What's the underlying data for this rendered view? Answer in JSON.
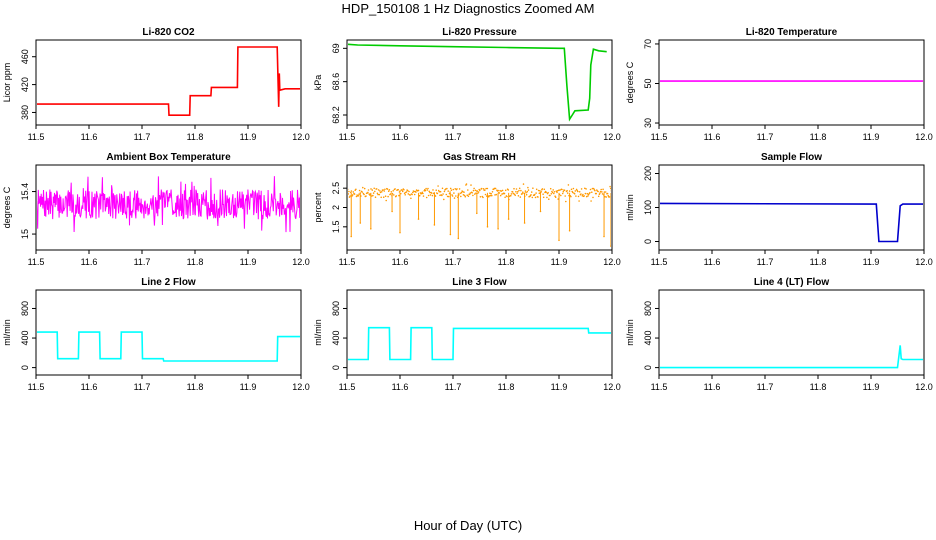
{
  "figure": {
    "title": "HDP_150108  1 Hz Diagnostics Zoomed AM",
    "xlabel": "Hour of Day (UTC)"
  },
  "chart_data": [
    {
      "type": "line",
      "title": "Li-820 CO2",
      "ylabel": "Licor ppm",
      "color": "#ff0000",
      "xlim": [
        11.5,
        12.0
      ],
      "ylim": [
        362,
        484
      ],
      "xticks": [
        11.5,
        11.6,
        11.7,
        11.8,
        11.9,
        12.0
      ],
      "yticks": [
        380,
        420,
        460
      ],
      "series": [
        {
          "x": [
            11.5,
            11.71,
            11.75,
            11.751,
            11.79,
            11.791,
            11.83,
            11.831,
            11.88,
            11.881,
            11.955,
            11.958,
            11.959,
            11.96,
            11.97,
            12.0
          ],
          "y": [
            392,
            392,
            392,
            376,
            376,
            404,
            404,
            416,
            416,
            474,
            474,
            388,
            436,
            412,
            414,
            414
          ]
        }
      ]
    },
    {
      "type": "line",
      "title": "Li-820 Pressure",
      "ylabel": "kPa",
      "color": "#00cc00",
      "xlim": [
        11.5,
        12.0
      ],
      "ylim": [
        68.08,
        69.1
      ],
      "xticks": [
        11.5,
        11.6,
        11.7,
        11.8,
        11.9,
        12.0
      ],
      "yticks": [
        68.2,
        68.6,
        69.0
      ],
      "series": [
        {
          "x": [
            11.5,
            11.52,
            11.6,
            11.7,
            11.8,
            11.9,
            11.91,
            11.915,
            11.92,
            11.925,
            11.93,
            11.955,
            11.958,
            11.96,
            11.965,
            11.975,
            11.99
          ],
          "y": [
            69.05,
            69.04,
            69.03,
            69.02,
            69.01,
            69.0,
            69.0,
            68.55,
            68.15,
            68.2,
            68.25,
            68.26,
            68.4,
            68.8,
            68.99,
            68.97,
            68.96
          ]
        }
      ]
    },
    {
      "type": "line",
      "title": "Li-820 Temperature",
      "ylabel": "degrees C",
      "color": "#ff00ff",
      "xlim": [
        11.5,
        12.0
      ],
      "ylim": [
        29,
        72
      ],
      "xticks": [
        11.5,
        11.6,
        11.7,
        11.8,
        11.9,
        12.0
      ],
      "yticks": [
        30,
        50,
        70
      ],
      "series": [
        {
          "x": [
            11.5,
            12.0
          ],
          "y": [
            51.2,
            51.2
          ]
        }
      ]
    },
    {
      "type": "line",
      "title": "Ambient Box Temperature",
      "ylabel": "degrees C",
      "color": "#ff00ff",
      "xlim": [
        11.5,
        12.0
      ],
      "ylim": [
        14.85,
        15.65
      ],
      "xticks": [
        11.5,
        11.6,
        11.7,
        11.8,
        11.9,
        12.0
      ],
      "yticks": [
        15.0,
        15.4
      ],
      "series": [
        {
          "pattern": "noise",
          "x_range": [
            11.5,
            12.0
          ],
          "base": 15.28,
          "amplitude": 0.14,
          "n": 460,
          "seed": 7
        }
      ]
    },
    {
      "type": "scatter",
      "title": "Gas Stream RH",
      "ylabel": "percent",
      "color": "#ff9900",
      "xlim": [
        11.5,
        12.0
      ],
      "ylim": [
        0.9,
        3.1
      ],
      "xticks": [
        11.5,
        11.6,
        11.7,
        11.8,
        11.9,
        12.0
      ],
      "yticks": [
        1.5,
        2.0,
        2.5
      ],
      "series": [
        {
          "pattern": "noise",
          "x_range": [
            11.5,
            12.0
          ],
          "base": 2.38,
          "amplitude": 0.12,
          "n": 420,
          "seed": 3,
          "dips_x": [
            11.508,
            11.525,
            11.545,
            11.585,
            11.6,
            11.635,
            11.665,
            11.695,
            11.71,
            11.745,
            11.765,
            11.785,
            11.805,
            11.835,
            11.865,
            11.9,
            11.92,
            11.985,
            11.998
          ],
          "dips_y": [
            1.25,
            1.6,
            1.45,
            1.9,
            1.35,
            1.7,
            1.55,
            1.3,
            1.2,
            1.85,
            1.5,
            1.45,
            1.7,
            1.6,
            1.9,
            1.15,
            1.4,
            1.25,
            1.0
          ]
        }
      ]
    },
    {
      "type": "line",
      "title": "Sample Flow",
      "ylabel": "ml/min",
      "color": "#0000cc",
      "xlim": [
        11.5,
        12.0
      ],
      "ylim": [
        -25,
        225
      ],
      "xticks": [
        11.5,
        11.6,
        11.7,
        11.8,
        11.9,
        12.0
      ],
      "yticks": [
        0,
        100,
        200
      ],
      "series": [
        {
          "x": [
            11.5,
            11.9,
            11.91,
            11.915,
            11.95,
            11.955,
            11.96,
            12.0
          ],
          "y": [
            112,
            110,
            110,
            0,
            0,
            105,
            110,
            110
          ]
        }
      ]
    },
    {
      "type": "line",
      "title": "Line 2 Flow",
      "ylabel": "ml/min",
      "color": "#00ffff",
      "xlim": [
        11.5,
        12.0
      ],
      "ylim": [
        -100,
        1050
      ],
      "xticks": [
        11.5,
        11.6,
        11.7,
        11.8,
        11.9,
        12.0
      ],
      "yticks": [
        0,
        400,
        800
      ],
      "series": [
        {
          "x": [
            11.5,
            11.54,
            11.541,
            11.58,
            11.581,
            11.62,
            11.621,
            11.66,
            11.661,
            11.7,
            11.701,
            11.74,
            11.741,
            11.955,
            11.956,
            12.0
          ],
          "y": [
            480,
            480,
            120,
            120,
            480,
            480,
            120,
            120,
            480,
            480,
            120,
            120,
            90,
            90,
            420,
            420
          ]
        }
      ]
    },
    {
      "type": "line",
      "title": "Line 3 Flow",
      "ylabel": "ml/min",
      "color": "#00ffff",
      "xlim": [
        11.5,
        12.0
      ],
      "ylim": [
        -100,
        1050
      ],
      "xticks": [
        11.5,
        11.6,
        11.7,
        11.8,
        11.9,
        12.0
      ],
      "yticks": [
        0,
        400,
        800
      ],
      "series": [
        {
          "x": [
            11.5,
            11.54,
            11.541,
            11.58,
            11.581,
            11.62,
            11.621,
            11.66,
            11.661,
            11.7,
            11.701,
            11.955,
            11.956,
            12.0
          ],
          "y": [
            110,
            110,
            540,
            540,
            110,
            110,
            540,
            540,
            110,
            110,
            530,
            530,
            470,
            470
          ]
        }
      ]
    },
    {
      "type": "line",
      "title": "Line 4 (LT) Flow",
      "ylabel": "ml/min",
      "color": "#00ffff",
      "xlim": [
        11.5,
        12.0
      ],
      "ylim": [
        -100,
        1050
      ],
      "xticks": [
        11.5,
        11.6,
        11.7,
        11.8,
        11.9,
        12.0
      ],
      "yticks": [
        0,
        400,
        800
      ],
      "series": [
        {
          "x": [
            11.5,
            11.95,
            11.955,
            11.957,
            11.96,
            12.0
          ],
          "y": [
            0,
            0,
            300,
            120,
            110,
            110
          ]
        }
      ]
    }
  ]
}
